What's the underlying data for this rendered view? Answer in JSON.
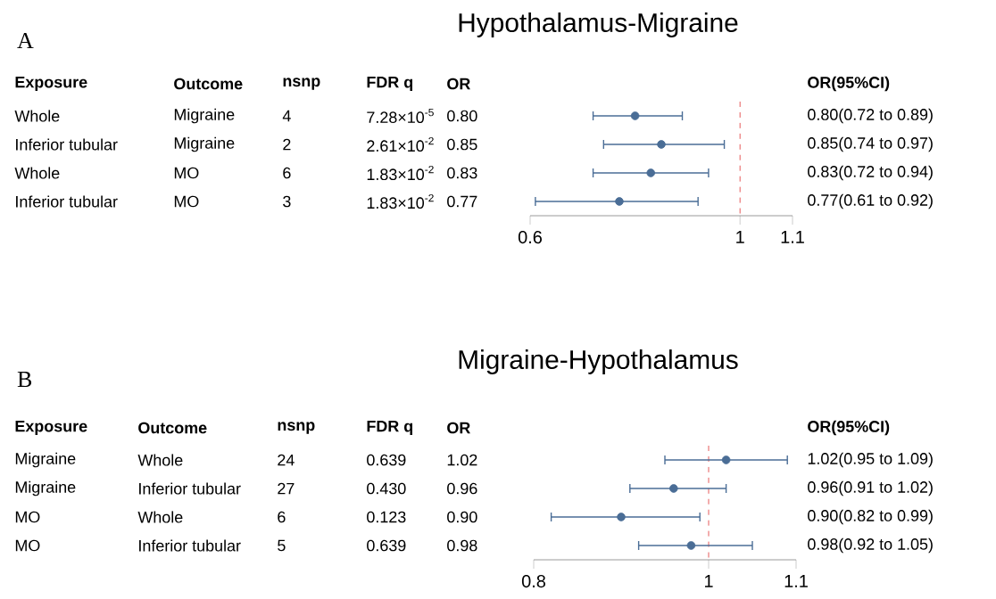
{
  "chart_data": [
    {
      "type": "scatter",
      "orientation": "horizontal",
      "title": "Hypothalamus-Migraine",
      "categories": [
        null,
        null,
        null,
        null
      ],
      "values": [
        0.8,
        0.85,
        0.83,
        0.77
      ],
      "errors": [
        [
          0.72,
          0.89
        ],
        [
          0.74,
          0.97
        ],
        [
          0.72,
          0.94
        ],
        [
          0.61,
          0.92
        ]
      ],
      "color": "#4a6d96",
      "marker": "circle",
      "xlim": [
        0.6,
        1.1
      ],
      "xticks": [
        0.6,
        1,
        1.1
      ],
      "tick_labels": "x",
      "ref_lines": [
        {
          "axis": "x",
          "value": 1,
          "color": "#e03030",
          "line_style": "dashed"
        }
      ],
      "annotations": [
        "A",
        "Exposure",
        "Outcome",
        "nsnp",
        "FDR q",
        "OR",
        "OR(95%CI)",
        "Whole",
        "Migraine",
        "4",
        "7.28×10$^{-5}$",
        "0.80",
        "0.80(0.72 to 0.89)",
        "Inferior tubular",
        "Migraine",
        "2",
        "2.61×10$^{-2}$",
        "0.85",
        "0.85(0.74 to 0.97)",
        "Whole",
        "MO",
        "6",
        "1.83×10$^{-2}$",
        "0.83",
        "0.83(0.72 to 0.94)",
        "Inferior tubular",
        "MO",
        "3",
        "1.83×10$^{-2}$",
        "0.77",
        "0.77(0.61 to 0.92)"
      ]
    },
    {
      "type": "scatter",
      "orientation": "horizontal",
      "title": "Migraine-Hypothalamus",
      "categories": [
        null,
        null,
        null,
        null
      ],
      "values": [
        1.02,
        0.96,
        0.9,
        0.98
      ],
      "errors": [
        [
          0.95,
          1.09
        ],
        [
          0.91,
          1.02
        ],
        [
          0.82,
          0.99
        ],
        [
          0.92,
          1.05
        ]
      ],
      "color": "#4a6d96",
      "marker": "circle",
      "xlim": [
        0.8,
        1.1
      ],
      "xticks": [
        0.8,
        1,
        1.1
      ],
      "tick_labels": "x",
      "ref_lines": [
        {
          "axis": "x",
          "value": 1,
          "color": "#e03030",
          "line_style": "dashed"
        }
      ],
      "annotations": [
        "B",
        "Exposure",
        "Outcome",
        "nsnp",
        "FDR q",
        "OR",
        "OR(95%CI)",
        "Migraine",
        "Whole",
        "24",
        "0.639",
        "1.02",
        "1.02(0.95 to 1.09)",
        "Migraine",
        "Inferior tubular",
        "27",
        "0.430",
        "0.96",
        "0.96(0.91 to 1.02)",
        "MO",
        "Whole",
        "6",
        "0.123",
        "0.90",
        "0.90(0.82 to 0.99)",
        "MO",
        "Inferior tubular",
        "5",
        "0.639",
        "0.98",
        "0.98(0.92 to 1.05)"
      ]
    }
  ]
}
